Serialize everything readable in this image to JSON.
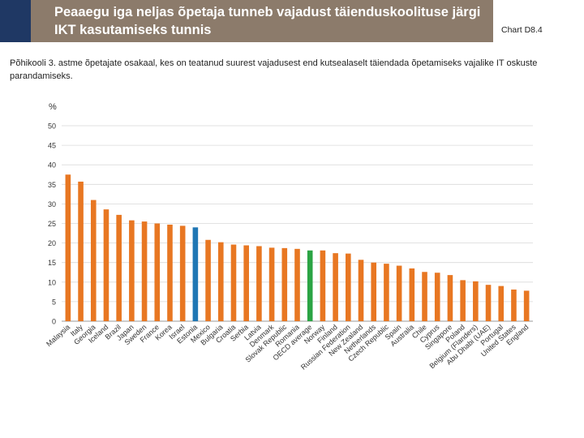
{
  "header": {
    "title": "Peaaegu iga neljas õpetaja tunneb vajadust täienduskoolituse järgi IKT kasutamiseks tunnis",
    "chart_id": "Chart D8.4",
    "subtitle": "Põhikooli 3. astme õpetajate osakaal, kes on teatanud suurest vajadusest end kutsealaselt täiendada õpetamiseks vajalike IT oskuste parandamiseks."
  },
  "colors": {
    "default": "#e87722",
    "highlight_blue": "#1f77b4",
    "highlight_green": "#2ca444",
    "title_bg": "#8c7b6b",
    "accent": "#1f3864"
  },
  "chart_data": {
    "type": "bar",
    "ylabel": "%",
    "ylim": [
      0,
      50
    ],
    "yticks": [
      0,
      5,
      10,
      15,
      20,
      25,
      30,
      35,
      40,
      45,
      50
    ],
    "categories": [
      "Malaysia",
      "Italy",
      "Georgia",
      "Iceland",
      "Brazil",
      "Japan",
      "Sweden",
      "France",
      "Korea",
      "Israel",
      "Estonia",
      "Mexico",
      "Bulgaria",
      "Croatia",
      "Serbia",
      "Latvia",
      "Denmark",
      "Slovak Republic",
      "Romania",
      "OECD average",
      "Norway",
      "Finland",
      "Russian Federation",
      "New Zealand",
      "Netherlands",
      "Czech Republic",
      "Spain",
      "Australia",
      "Chile",
      "Cyprus",
      "Singapore",
      "Poland",
      "Belgium (Flanders)",
      "Abu Dhabi (UAE)",
      "Portugal",
      "United States",
      "England"
    ],
    "values": [
      37.5,
      35.7,
      31.0,
      28.6,
      27.2,
      25.8,
      25.5,
      25.0,
      24.7,
      24.4,
      24.0,
      20.8,
      20.2,
      19.6,
      19.4,
      19.2,
      18.8,
      18.7,
      18.5,
      18.1,
      18.1,
      17.4,
      17.3,
      15.7,
      15.0,
      14.7,
      14.2,
      13.5,
      12.6,
      12.4,
      11.8,
      10.5,
      10.2,
      9.3,
      9.0,
      8.1,
      7.8
    ],
    "highlight": {
      "Estonia": "blue",
      "OECD average": "green"
    }
  }
}
